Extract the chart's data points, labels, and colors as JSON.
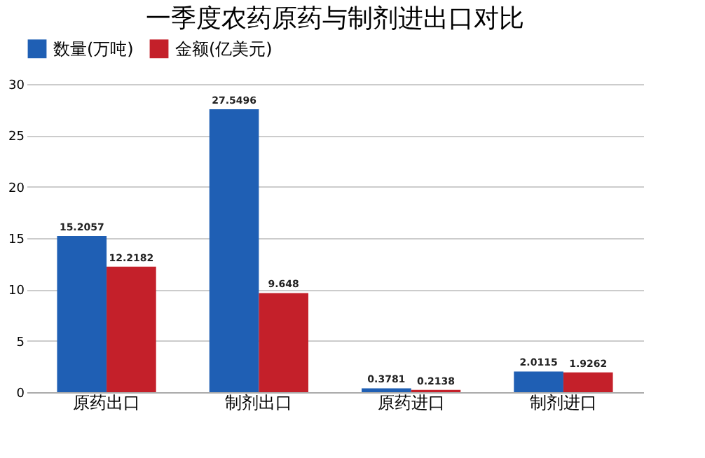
{
  "chart_data": {
    "type": "bar",
    "title": "一季度农药原药与制剂进出口对比",
    "categories": [
      "原药出口",
      "制剂出口",
      "原药进口",
      "制剂进口"
    ],
    "series": [
      {
        "name": "数量(万吨)",
        "color": "#1f5fb4",
        "values": [
          15.2057,
          27.5496,
          0.3781,
          2.0115
        ]
      },
      {
        "name": "金额(亿美元)",
        "color": "#c4202a",
        "values": [
          12.2182,
          9.648,
          0.2138,
          1.9262
        ]
      }
    ],
    "ylim": [
      0,
      30
    ],
    "yticks": [
      0,
      5,
      10,
      15,
      20,
      25,
      30
    ],
    "grid": "y",
    "legend": "top",
    "data_labels": true
  }
}
